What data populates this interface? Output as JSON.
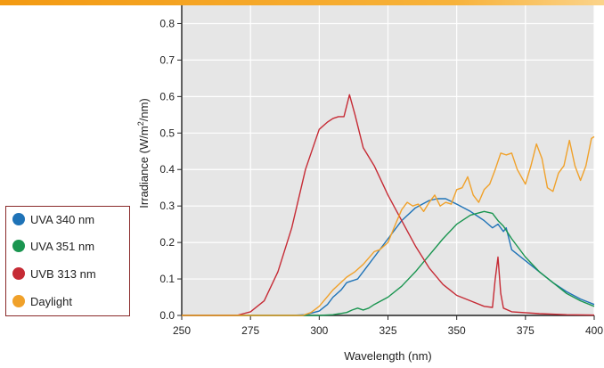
{
  "chart_data": {
    "type": "line",
    "title": "",
    "xlabel": "Wavelength (nm)",
    "ylabel_prefix": "Irradiance (W/m",
    "ylabel_sup": "2",
    "ylabel_suffix": "/nm)",
    "xlim": [
      250,
      400
    ],
    "ylim": [
      0,
      0.85
    ],
    "xticks": [
      250,
      275,
      300,
      325,
      350,
      375,
      400
    ],
    "xtick_labels": [
      "250",
      "275",
      "300",
      "325",
      "350",
      "375",
      "400"
    ],
    "yticks": [
      0,
      0.1,
      0.2,
      0.3,
      0.4,
      0.5,
      0.6,
      0.7,
      0.8
    ],
    "ytick_labels": [
      "0.0",
      "0.1",
      "0.2",
      "0.3",
      "0.4",
      "0.5",
      "0.6",
      "0.7",
      "0.8"
    ],
    "grid": true,
    "legend_position": "left",
    "series": [
      {
        "name": "UVA 340 nm",
        "color": "#1f73b7",
        "points": [
          [
            250,
            0
          ],
          [
            290,
            0
          ],
          [
            295,
            0.002
          ],
          [
            300,
            0.012
          ],
          [
            303,
            0.03
          ],
          [
            305,
            0.05
          ],
          [
            308,
            0.07
          ],
          [
            310,
            0.09
          ],
          [
            312,
            0.095
          ],
          [
            314,
            0.1
          ],
          [
            317,
            0.13
          ],
          [
            320,
            0.16
          ],
          [
            325,
            0.21
          ],
          [
            330,
            0.26
          ],
          [
            335,
            0.295
          ],
          [
            340,
            0.315
          ],
          [
            343,
            0.32
          ],
          [
            346,
            0.32
          ],
          [
            350,
            0.305
          ],
          [
            355,
            0.285
          ],
          [
            358,
            0.27
          ],
          [
            360,
            0.26
          ],
          [
            363,
            0.24
          ],
          [
            365,
            0.25
          ],
          [
            367,
            0.23
          ],
          [
            368,
            0.24
          ],
          [
            370,
            0.18
          ],
          [
            375,
            0.15
          ],
          [
            380,
            0.12
          ],
          [
            385,
            0.09
          ],
          [
            390,
            0.065
          ],
          [
            395,
            0.045
          ],
          [
            400,
            0.03
          ]
        ]
      },
      {
        "name": "UVA 351 nm",
        "color": "#1a9550",
        "points": [
          [
            250,
            0
          ],
          [
            300,
            0
          ],
          [
            305,
            0.002
          ],
          [
            310,
            0.008
          ],
          [
            312,
            0.015
          ],
          [
            314,
            0.02
          ],
          [
            316,
            0.015
          ],
          [
            318,
            0.02
          ],
          [
            320,
            0.03
          ],
          [
            325,
            0.05
          ],
          [
            330,
            0.08
          ],
          [
            335,
            0.12
          ],
          [
            340,
            0.165
          ],
          [
            345,
            0.21
          ],
          [
            350,
            0.25
          ],
          [
            355,
            0.275
          ],
          [
            360,
            0.285
          ],
          [
            363,
            0.28
          ],
          [
            365,
            0.26
          ],
          [
            367,
            0.245
          ],
          [
            370,
            0.21
          ],
          [
            375,
            0.16
          ],
          [
            380,
            0.12
          ],
          [
            385,
            0.09
          ],
          [
            390,
            0.06
          ],
          [
            395,
            0.04
          ],
          [
            400,
            0.025
          ]
        ]
      },
      {
        "name": "UVB 313 nm",
        "color": "#c62b35",
        "points": [
          [
            250,
            0
          ],
          [
            270,
            0
          ],
          [
            275,
            0.01
          ],
          [
            280,
            0.04
          ],
          [
            285,
            0.12
          ],
          [
            290,
            0.24
          ],
          [
            295,
            0.4
          ],
          [
            300,
            0.51
          ],
          [
            303,
            0.53
          ],
          [
            305,
            0.54
          ],
          [
            307,
            0.545
          ],
          [
            309,
            0.545
          ],
          [
            311,
            0.605
          ],
          [
            313,
            0.55
          ],
          [
            316,
            0.46
          ],
          [
            320,
            0.41
          ],
          [
            325,
            0.33
          ],
          [
            330,
            0.26
          ],
          [
            335,
            0.19
          ],
          [
            340,
            0.13
          ],
          [
            345,
            0.085
          ],
          [
            350,
            0.055
          ],
          [
            355,
            0.04
          ],
          [
            360,
            0.025
          ],
          [
            363,
            0.022
          ],
          [
            364,
            0.1
          ],
          [
            365,
            0.16
          ],
          [
            366,
            0.06
          ],
          [
            367,
            0.02
          ],
          [
            370,
            0.01
          ],
          [
            380,
            0.005
          ],
          [
            390,
            0.002
          ],
          [
            400,
            0.001
          ]
        ]
      },
      {
        "name": "Daylight",
        "color": "#f0a12a",
        "points": [
          [
            250,
            0
          ],
          [
            294,
            0
          ],
          [
            297,
            0.008
          ],
          [
            300,
            0.025
          ],
          [
            305,
            0.07
          ],
          [
            310,
            0.105
          ],
          [
            313,
            0.12
          ],
          [
            316,
            0.14
          ],
          [
            320,
            0.175
          ],
          [
            322,
            0.18
          ],
          [
            325,
            0.2
          ],
          [
            328,
            0.255
          ],
          [
            330,
            0.29
          ],
          [
            332,
            0.31
          ],
          [
            334,
            0.3
          ],
          [
            336,
            0.305
          ],
          [
            338,
            0.285
          ],
          [
            340,
            0.31
          ],
          [
            342,
            0.33
          ],
          [
            344,
            0.3
          ],
          [
            346,
            0.31
          ],
          [
            348,
            0.305
          ],
          [
            350,
            0.345
          ],
          [
            352,
            0.35
          ],
          [
            354,
            0.38
          ],
          [
            356,
            0.33
          ],
          [
            358,
            0.31
          ],
          [
            360,
            0.345
          ],
          [
            362,
            0.36
          ],
          [
            364,
            0.4
          ],
          [
            366,
            0.445
          ],
          [
            368,
            0.44
          ],
          [
            370,
            0.445
          ],
          [
            372,
            0.4
          ],
          [
            375,
            0.36
          ],
          [
            377,
            0.41
          ],
          [
            379,
            0.47
          ],
          [
            381,
            0.43
          ],
          [
            383,
            0.35
          ],
          [
            385,
            0.34
          ],
          [
            387,
            0.39
          ],
          [
            389,
            0.41
          ],
          [
            391,
            0.48
          ],
          [
            393,
            0.41
          ],
          [
            395,
            0.37
          ],
          [
            397,
            0.41
          ],
          [
            399,
            0.485
          ],
          [
            400,
            0.49
          ]
        ]
      }
    ]
  }
}
